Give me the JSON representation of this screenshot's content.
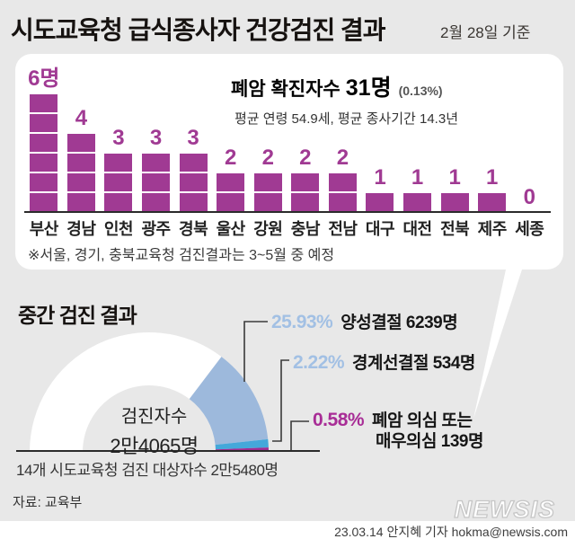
{
  "header": {
    "title": "시도교육청 급식종사자 건강검진 결과",
    "date_note": "2월 28일 기준"
  },
  "chart_data": [
    {
      "type": "bar",
      "title_label": "폐암 확진자수",
      "title_value": "31명",
      "title_pct": "(0.13%)",
      "subtitle": "평균 연령 54.9세, 평균 종사기간 14.3년",
      "categories": [
        "부산",
        "경남",
        "인천",
        "광주",
        "경북",
        "울산",
        "강원",
        "충남",
        "전남",
        "대구",
        "대전",
        "전북",
        "제주",
        "세종"
      ],
      "values": [
        6,
        4,
        3,
        3,
        3,
        2,
        2,
        2,
        2,
        1,
        1,
        1,
        1,
        0
      ],
      "unit": "명",
      "ylim": [
        0,
        6
      ],
      "bar_color": "#a03a93",
      "note": "※서울, 경기, 충북교육청 검진결과는 3~5월 중 예정"
    },
    {
      "type": "pie",
      "variant": "semi-donut",
      "title": "중간 검진 결과",
      "center_label": "검진자수",
      "center_value": "2만4065명",
      "baseline_note": "14개 시도교육청 검진 대상자수 2만5480명",
      "remainder_color": "#ffffff",
      "segments": [
        {
          "label": "양성결절",
          "count": "6239명",
          "pct": 25.93,
          "pct_label": "25.93%",
          "desc": "양성결절 6239명",
          "color": "#9db9dc",
          "label_color": "#a2c0e4"
        },
        {
          "label": "경계선결절",
          "count": "534명",
          "pct": 2.22,
          "pct_label": "2.22%",
          "desc": "경계선결절 534명",
          "color": "#44a8da",
          "label_color": "#a2c0e4"
        },
        {
          "label": "폐암 의심 또는 매우의심",
          "count": "139명",
          "pct": 0.58,
          "pct_label": "0.58%",
          "desc": "폐암 의심 또는",
          "desc2": "매우의심 139명",
          "color": "#a02d92",
          "label_color": "#a82d96"
        }
      ]
    }
  ],
  "footer": {
    "source": "자료: 교육부",
    "logo": "NEWSIS",
    "credit": "23.03.14 안지혜 기자 hokma@newsis.com"
  }
}
